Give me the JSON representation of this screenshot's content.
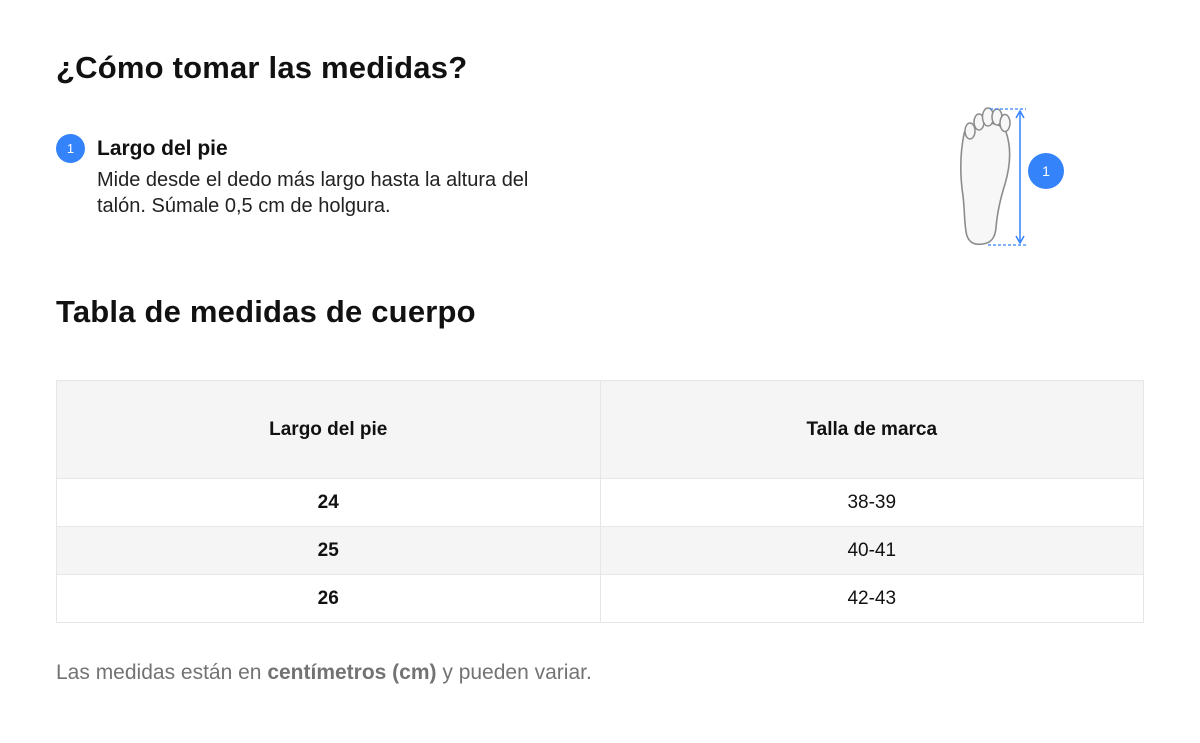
{
  "heading_measure": "¿Cómo tomar las medidas?",
  "step": {
    "number": "1",
    "title": "Largo del pie",
    "description": "Mide desde el dedo más largo hasta la altura del talón. Súmale 0,5 cm de holgura."
  },
  "illustration": {
    "icon": "foot-icon",
    "marker": "1"
  },
  "heading_table": "Tabla de medidas de cuerpo",
  "table": {
    "headers": [
      "Largo del pie",
      "Talla de marca"
    ],
    "rows": [
      {
        "length": "24",
        "size": "38-39"
      },
      {
        "length": "25",
        "size": "40-41"
      },
      {
        "length": "26",
        "size": "42-43"
      }
    ]
  },
  "footnote": {
    "prefix": "Las medidas están en ",
    "unit": "centímetros (cm)",
    "suffix": " y pueden variar."
  },
  "colors": {
    "accent": "#3483fa",
    "header_bg": "#f5f5f5",
    "border": "#e6e6e6",
    "muted_text": "#737373"
  }
}
